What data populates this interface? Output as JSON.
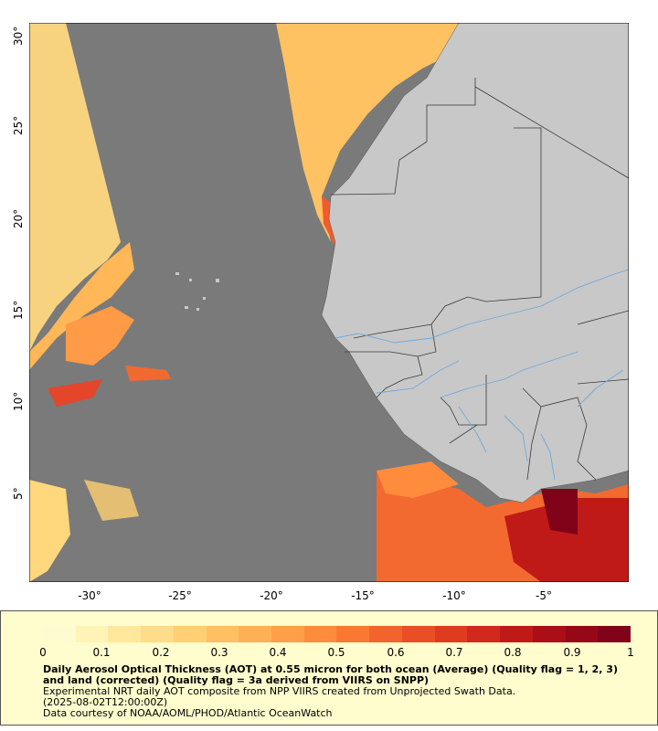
{
  "map": {
    "lat_labels": [
      "30°",
      "25°",
      "20°",
      "15°",
      "10°",
      "5°"
    ],
    "lon_labels": [
      "-30°",
      "-25°",
      "-20°",
      "-15°",
      "-10°",
      "-5°"
    ],
    "colors": {
      "ocean_nodata": "#7a7a7a",
      "land": "#c8c8c8",
      "river": "#6fa8dc",
      "border": "#3a3a3a"
    }
  },
  "legend": {
    "ticks": [
      "0",
      "0.1",
      "0.2",
      "0.3",
      "0.4",
      "0.5",
      "0.6",
      "0.7",
      "0.8",
      "0.9",
      "1"
    ],
    "title": "Daily Aerosol Optical Thickness (AOT) at 0.55 micron for both ocean (Average) (Quality flag = 1, 2, 3) and land (corrected) (Quality flag = 3a derived from VIIRS on SNPP)",
    "line1": "Experimental NRT daily AOT composite from NPP VIIRS created from Unprojected Swath Data.",
    "line2": "(2025-08-02T12:00:00Z)",
    "line3": "Data courtesy of NOAA/AOML/PHOD/Atlantic OceanWatch",
    "colorscale": [
      "#fffbd0",
      "#fff3b5",
      "#ffe89c",
      "#ffdc87",
      "#ffcf74",
      "#ffc063",
      "#ffb055",
      "#ff9f48",
      "#ff8c3d",
      "#fa7834",
      "#f3632c",
      "#ea4e25",
      "#df3b1f",
      "#d1291b",
      "#c01a18",
      "#ab0e17",
      "#960818",
      "#80031a"
    ]
  }
}
